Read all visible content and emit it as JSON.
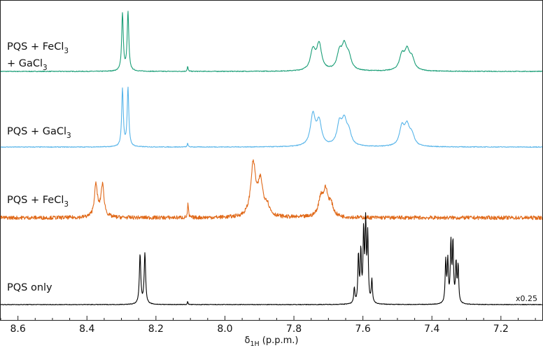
{
  "chart_data": {
    "type": "line",
    "title": "",
    "xlabel": {
      "main": "δ",
      "sub": "1H",
      "rest": " (p.p.m.)"
    },
    "ylabel": "",
    "xlim": [
      8.65,
      7.08
    ],
    "x_reversed": true,
    "ylim": [
      0,
      1
    ],
    "grid": false,
    "legend": "none",
    "ticks": [
      {
        "value": 8.6,
        "label": "8.6"
      },
      {
        "value": 8.4,
        "label": "8.4"
      },
      {
        "value": 8.2,
        "label": "8.2"
      },
      {
        "value": 8.0,
        "label": "8.0"
      },
      {
        "value": 7.8,
        "label": "7.8"
      },
      {
        "value": 7.6,
        "label": "7.6"
      },
      {
        "value": 7.4,
        "label": "7.4"
      },
      {
        "value": 7.2,
        "label": "7.2"
      }
    ],
    "series": [
      {
        "key": "fecl3_gacl3",
        "label_lines": [
          {
            "pre": "PQS + FeCl",
            "sub": "3",
            "post": ""
          },
          {
            "pre": "+ GaCl",
            "sub": "3",
            "post": ""
          }
        ],
        "color": "#1a9e77",
        "noise": 0.006,
        "peaks": [
          {
            "x": 8.297,
            "h": 0.93,
            "w": 0.0028
          },
          {
            "x": 8.281,
            "h": 0.95,
            "w": 0.0028
          },
          {
            "x": 8.108,
            "h": 0.08,
            "w": 0.0015
          },
          {
            "x": 7.745,
            "h": 0.32,
            "w": 0.0085
          },
          {
            "x": 7.727,
            "h": 0.42,
            "w": 0.0085
          },
          {
            "x": 7.668,
            "h": 0.27,
            "w": 0.0085
          },
          {
            "x": 7.654,
            "h": 0.36,
            "w": 0.0085
          },
          {
            "x": 7.641,
            "h": 0.2,
            "w": 0.0085
          },
          {
            "x": 7.487,
            "h": 0.24,
            "w": 0.0085
          },
          {
            "x": 7.472,
            "h": 0.3,
            "w": 0.0085
          },
          {
            "x": 7.458,
            "h": 0.18,
            "w": 0.0085
          }
        ]
      },
      {
        "key": "gacl3",
        "label_lines": [
          {
            "pre": "PQS + GaCl",
            "sub": "3",
            "post": ""
          }
        ],
        "color": "#56b4e9",
        "noise": 0.006,
        "peaks": [
          {
            "x": 8.297,
            "h": 0.93,
            "w": 0.0028
          },
          {
            "x": 8.281,
            "h": 0.95,
            "w": 0.0028
          },
          {
            "x": 8.108,
            "h": 0.06,
            "w": 0.0015
          },
          {
            "x": 7.745,
            "h": 0.5,
            "w": 0.0085
          },
          {
            "x": 7.727,
            "h": 0.38,
            "w": 0.0085
          },
          {
            "x": 7.668,
            "h": 0.34,
            "w": 0.0085
          },
          {
            "x": 7.654,
            "h": 0.36,
            "w": 0.0085
          },
          {
            "x": 7.641,
            "h": 0.2,
            "w": 0.0085
          },
          {
            "x": 7.487,
            "h": 0.3,
            "w": 0.0085
          },
          {
            "x": 7.472,
            "h": 0.3,
            "w": 0.0085
          },
          {
            "x": 7.458,
            "h": 0.17,
            "w": 0.0085
          }
        ]
      },
      {
        "key": "fecl3",
        "label_lines": [
          {
            "pre": "PQS + FeCl",
            "sub": "3",
            "post": ""
          }
        ],
        "color": "#e06919",
        "noise": 0.03,
        "peaks": [
          {
            "x": 8.374,
            "h": 0.5,
            "w": 0.0055
          },
          {
            "x": 8.355,
            "h": 0.5,
            "w": 0.0055
          },
          {
            "x": 8.107,
            "h": 0.22,
            "w": 0.0015
          },
          {
            "x": 7.918,
            "h": 0.82,
            "w": 0.0085
          },
          {
            "x": 7.897,
            "h": 0.52,
            "w": 0.0085
          },
          {
            "x": 7.878,
            "h": 0.16,
            "w": 0.0085
          },
          {
            "x": 7.722,
            "h": 0.28,
            "w": 0.008
          },
          {
            "x": 7.708,
            "h": 0.38,
            "w": 0.008
          },
          {
            "x": 7.693,
            "h": 0.18,
            "w": 0.008
          }
        ]
      },
      {
        "key": "pqs_only",
        "label_lines": [
          {
            "pre": "PQS only",
            "sub": "",
            "post": ""
          }
        ],
        "color": "#000000",
        "noise": 0.004,
        "scale_note": "x0.25",
        "peaks": [
          {
            "x": 8.246,
            "h": 0.64,
            "w": 0.0025
          },
          {
            "x": 8.232,
            "h": 0.66,
            "w": 0.0025
          },
          {
            "x": 8.108,
            "h": 0.04,
            "w": 0.0012
          },
          {
            "x": 7.625,
            "h": 0.2,
            "w": 0.002
          },
          {
            "x": 7.613,
            "h": 0.62,
            "w": 0.002
          },
          {
            "x": 7.606,
            "h": 0.65,
            "w": 0.002
          },
          {
            "x": 7.598,
            "h": 0.9,
            "w": 0.002
          },
          {
            "x": 7.592,
            "h": 1.0,
            "w": 0.002
          },
          {
            "x": 7.586,
            "h": 0.86,
            "w": 0.002
          },
          {
            "x": 7.574,
            "h": 0.3,
            "w": 0.002
          },
          {
            "x": 7.36,
            "h": 0.54,
            "w": 0.002
          },
          {
            "x": 7.354,
            "h": 0.54,
            "w": 0.002
          },
          {
            "x": 7.345,
            "h": 0.76,
            "w": 0.002
          },
          {
            "x": 7.339,
            "h": 0.76,
            "w": 0.002
          },
          {
            "x": 7.33,
            "h": 0.5,
            "w": 0.002
          },
          {
            "x": 7.324,
            "h": 0.48,
            "w": 0.002
          }
        ]
      }
    ]
  }
}
